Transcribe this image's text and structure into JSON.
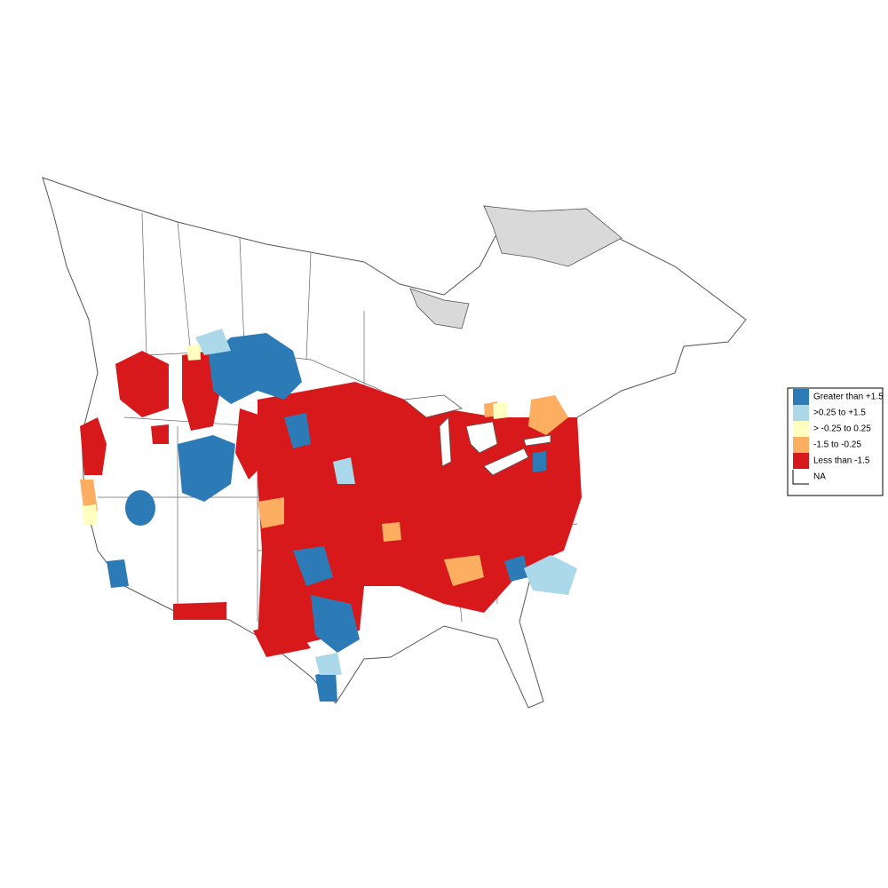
{
  "legend": {
    "items": [
      {
        "label": "Greater than +1.5",
        "color": "#2c7bb6"
      },
      {
        "label": ">0.25 to +1.5",
        "color": "#abd9e9"
      },
      {
        "label": "> -0.25 to 0.25",
        "color": "#ffffbf"
      },
      {
        "label": "-1.5 to -0.25",
        "color": "#fdae61"
      },
      {
        "label": "Less than -1.5",
        "color": "#d7191c"
      },
      {
        "label": "NA",
        "color": "#ffffff"
      }
    ]
  }
}
